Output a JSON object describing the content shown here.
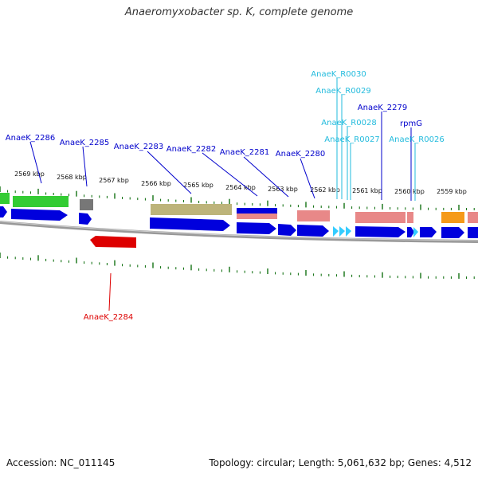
{
  "title": "Anaeromyxobacter sp. K, complete genome",
  "footer": {
    "accession": "Accession: NC_011145",
    "summary": "Topology: circular; Length: 5,061,632 bp; Genes: 4,512"
  },
  "colors": {
    "cds": "#0000dd",
    "rrna_trna": "#e88888",
    "green": "#33cc33",
    "gray": "#777777",
    "olive": "#bdb47a",
    "orange": "#f59a1a",
    "red_gene": "#dd0000",
    "cyan": "#33ccff",
    "label_blue": "#0000cc",
    "label_cyan": "#22bbdd",
    "label_red": "#dd0000",
    "ticks": "#006600",
    "backbone": "#888888"
  },
  "scale_labels": [
    "2569 kbp",
    "2568 kbp",
    "2567 kbp",
    "2566 kbp",
    "2565 kbp",
    "2564 kbp",
    "2563 kbp",
    "2562 kbp",
    "2561 kbp",
    "2560 kbp",
    "2559 kbp"
  ],
  "gene_labels": [
    {
      "text": "AnaeK_2286",
      "kind": "blue"
    },
    {
      "text": "AnaeK_2285",
      "kind": "blue"
    },
    {
      "text": "AnaeK_2283",
      "kind": "blue"
    },
    {
      "text": "AnaeK_2282",
      "kind": "blue"
    },
    {
      "text": "AnaeK_2281",
      "kind": "blue"
    },
    {
      "text": "AnaeK_2280",
      "kind": "blue"
    },
    {
      "text": "AnaeK_R0030",
      "kind": "cyan"
    },
    {
      "text": "AnaeK_R0029",
      "kind": "cyan"
    },
    {
      "text": "AnaeK_2279",
      "kind": "blue"
    },
    {
      "text": "AnaeK_R0028",
      "kind": "cyan"
    },
    {
      "text": "rpmG",
      "kind": "blue"
    },
    {
      "text": "AnaeK_R0027",
      "kind": "cyan"
    },
    {
      "text": "AnaeK_R0026",
      "kind": "cyan"
    },
    {
      "text": "AnaeK_2284",
      "kind": "red"
    }
  ]
}
